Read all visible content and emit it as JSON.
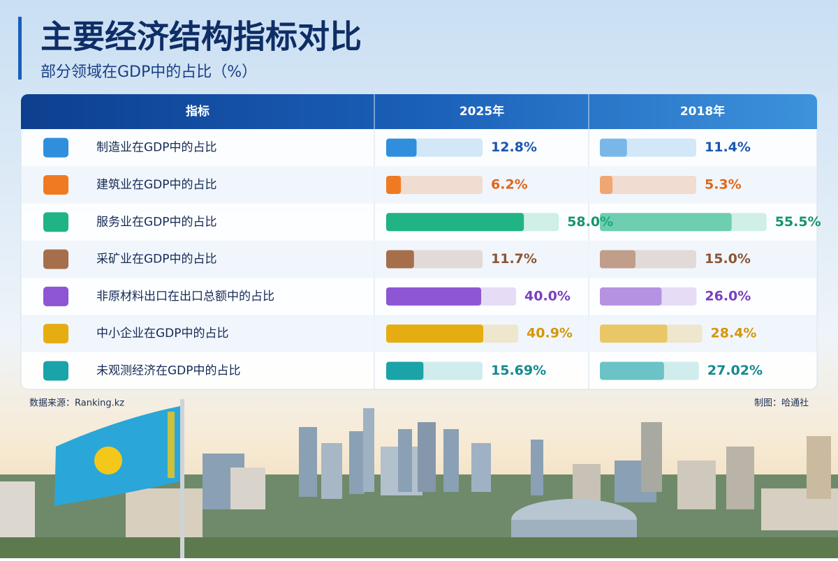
{
  "header": {
    "title": "主要经济结构指标对比",
    "subtitle": "部分领域在GDP中的占比（%）"
  },
  "table": {
    "columns": [
      "指标",
      "2025年",
      "2018年"
    ],
    "rows": [
      {
        "label": "制造业在GDP中的占比",
        "values": [
          12.8,
          11.4
        ],
        "value_labels": [
          "12.8%",
          "11.4%"
        ],
        "color": "#2f8fdc",
        "text_color": "#1a55b0"
      },
      {
        "label": "建筑业在GDP中的占比",
        "values": [
          6.2,
          5.3
        ],
        "value_labels": [
          "6.2%",
          "5.3%"
        ],
        "color": "#f07a22",
        "text_color": "#e0661a"
      },
      {
        "label": "服务业在GDP中的占比",
        "values": [
          58.0,
          55.5
        ],
        "value_labels": [
          "58.0%",
          "55.5%"
        ],
        "color": "#1fb386",
        "text_color": "#16936c"
      },
      {
        "label": "采矿业在GDP中的占比",
        "values": [
          11.7,
          15.0
        ],
        "value_labels": [
          "11.7%",
          "15.0%"
        ],
        "color": "#a66e4a",
        "text_color": "#8a5535"
      },
      {
        "label": "非原材料出口在出口总额中的占比",
        "values": [
          40.0,
          26.0
        ],
        "value_labels": [
          "40.0%",
          "26.0%"
        ],
        "color": "#8e55d4",
        "text_color": "#7a3fc0"
      },
      {
        "label": "中小企业在GDP中的占比",
        "values": [
          40.9,
          28.4
        ],
        "value_labels": [
          "40.9%",
          "28.4%"
        ],
        "color": "#e6ad12",
        "text_color": "#d4960a"
      },
      {
        "label": "未观测经济在GDP中的占比",
        "values": [
          15.69,
          27.02
        ],
        "value_labels": [
          "15.69%",
          "27.02%"
        ],
        "color": "#1aa3a8",
        "text_color": "#138a8f"
      }
    ]
  },
  "footer": {
    "source": "数据来源：Ranking.kz",
    "credit": "制图：哈通社"
  }
}
